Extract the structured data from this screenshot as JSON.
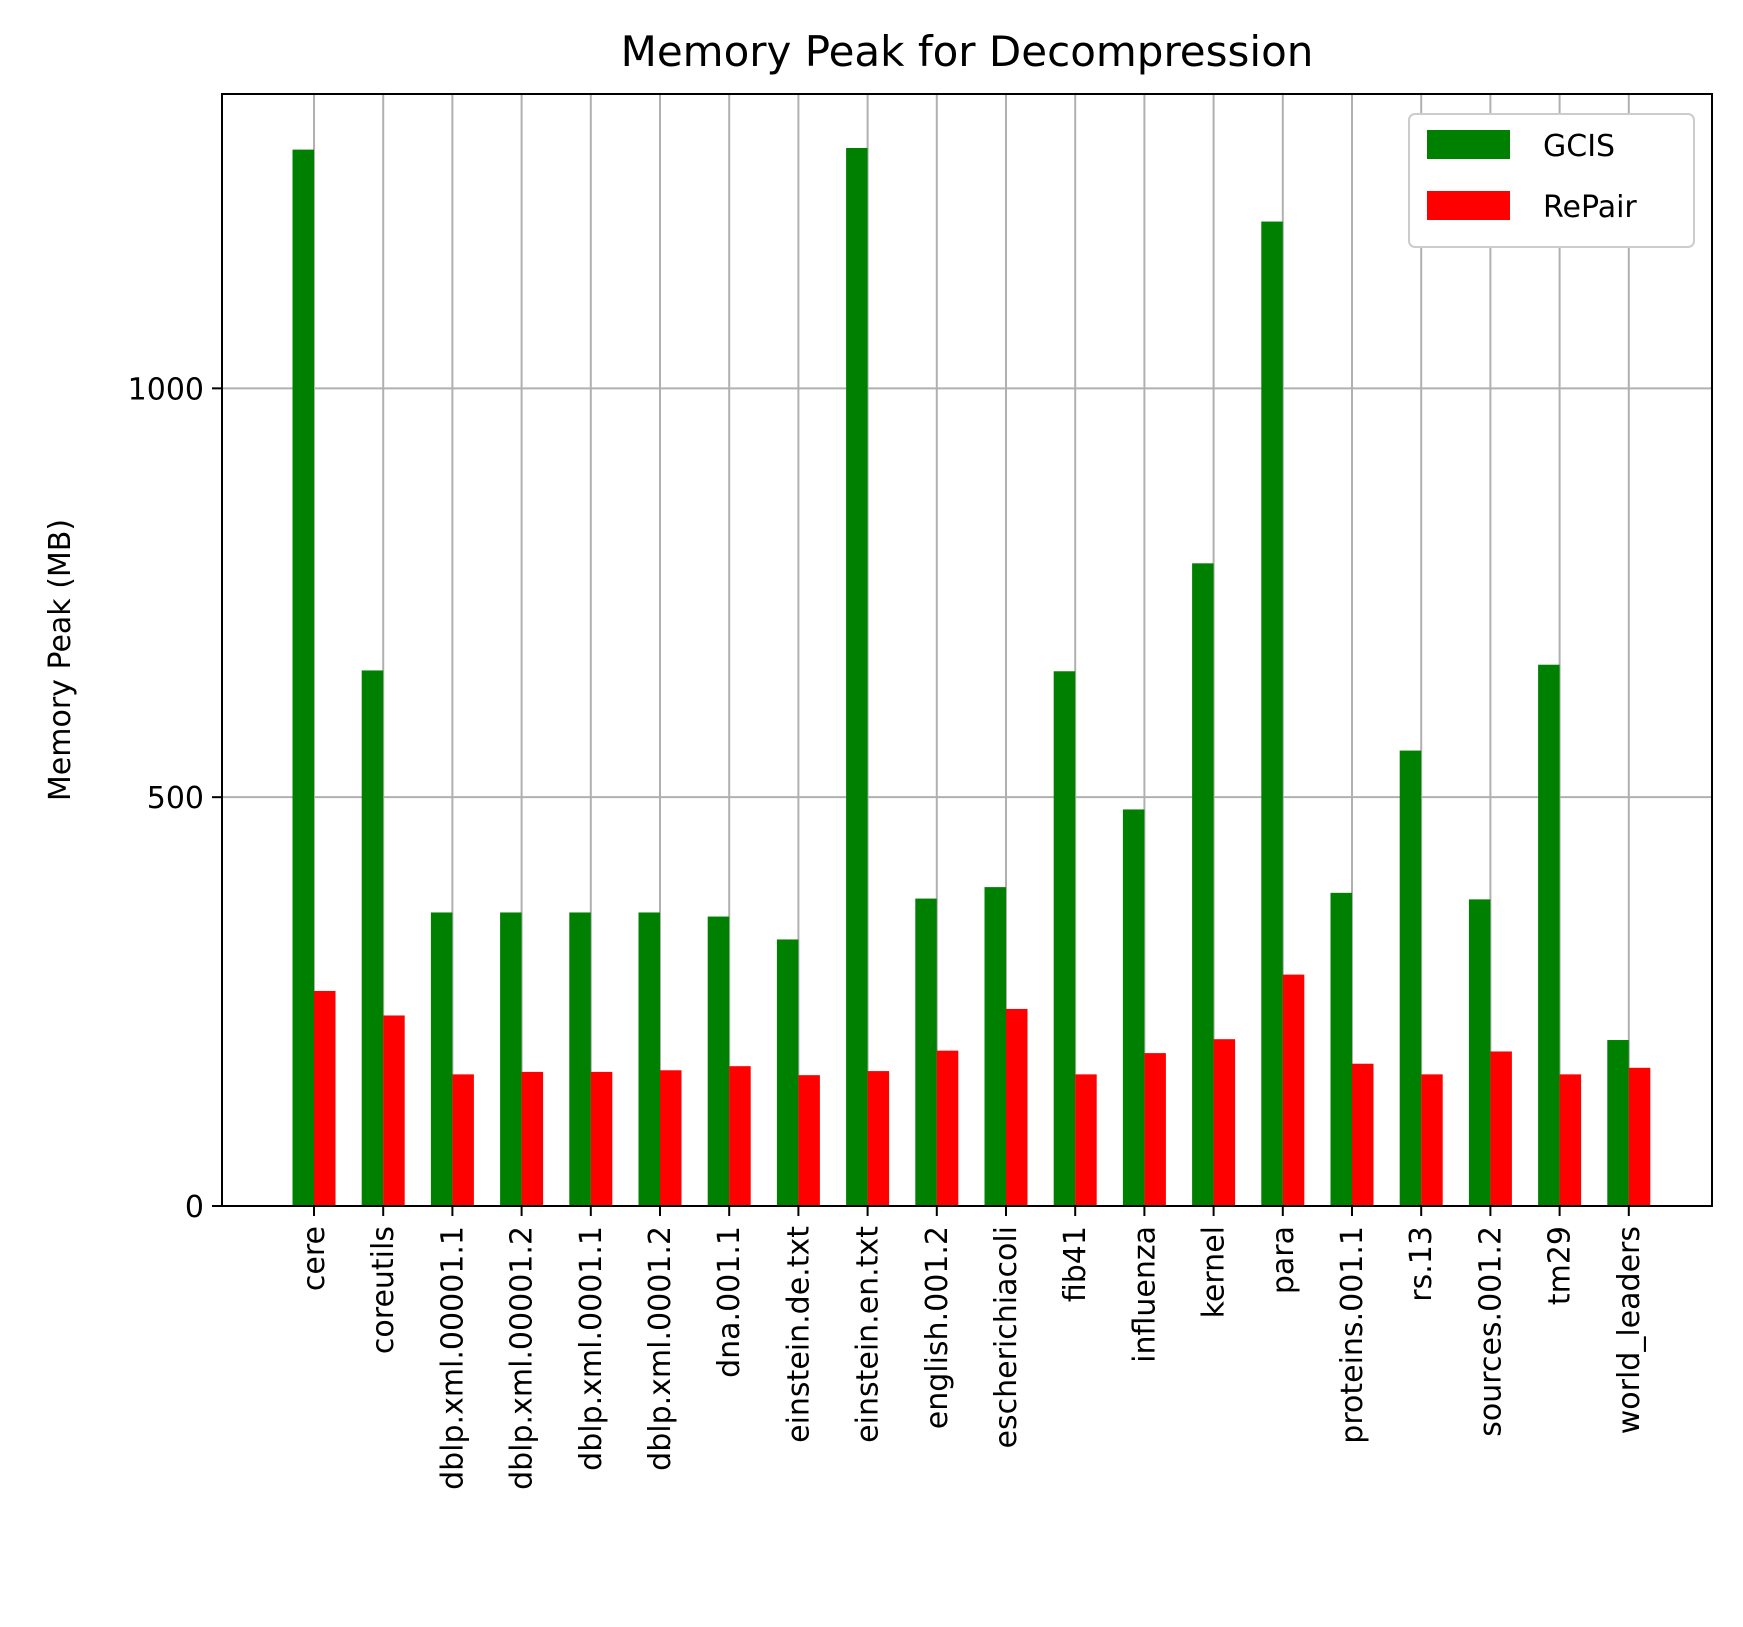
{
  "chart_data": {
    "type": "bar",
    "title": "Memory Peak for Decompression",
    "xlabel": "",
    "ylabel": "Memory Peak (MB)",
    "ylim": [
      0,
      1360
    ],
    "yticks": [
      0,
      500,
      1000
    ],
    "grid": true,
    "legend_position": "top-right",
    "categories": [
      "cere",
      "coreutils",
      "dblp.xml.00001.1",
      "dblp.xml.00001.2",
      "dblp.xml.0001.1",
      "dblp.xml.0001.2",
      "dna.001.1",
      "einstein.de.txt",
      "einstein.en.txt",
      "english.001.2",
      "escherichiacoli",
      "fib41",
      "influenza",
      "kernel",
      "para",
      "proteins.001.1",
      "rs.13",
      "sources.001.2",
      "tm29",
      "world_leaders"
    ],
    "series": [
      {
        "name": "GCIS",
        "color": "#008000",
        "values": [
          1292,
          655,
          359,
          359,
          359,
          359,
          354,
          326,
          1294,
          376,
          390,
          654,
          485,
          786,
          1204,
          383,
          557,
          375,
          662,
          203
        ]
      },
      {
        "name": "RePair",
        "color": "#ff0000",
        "values": [
          263,
          233,
          161,
          164,
          164,
          166,
          171,
          160,
          165,
          190,
          241,
          161,
          187,
          204,
          283,
          174,
          161,
          189,
          161,
          169
        ]
      }
    ]
  }
}
